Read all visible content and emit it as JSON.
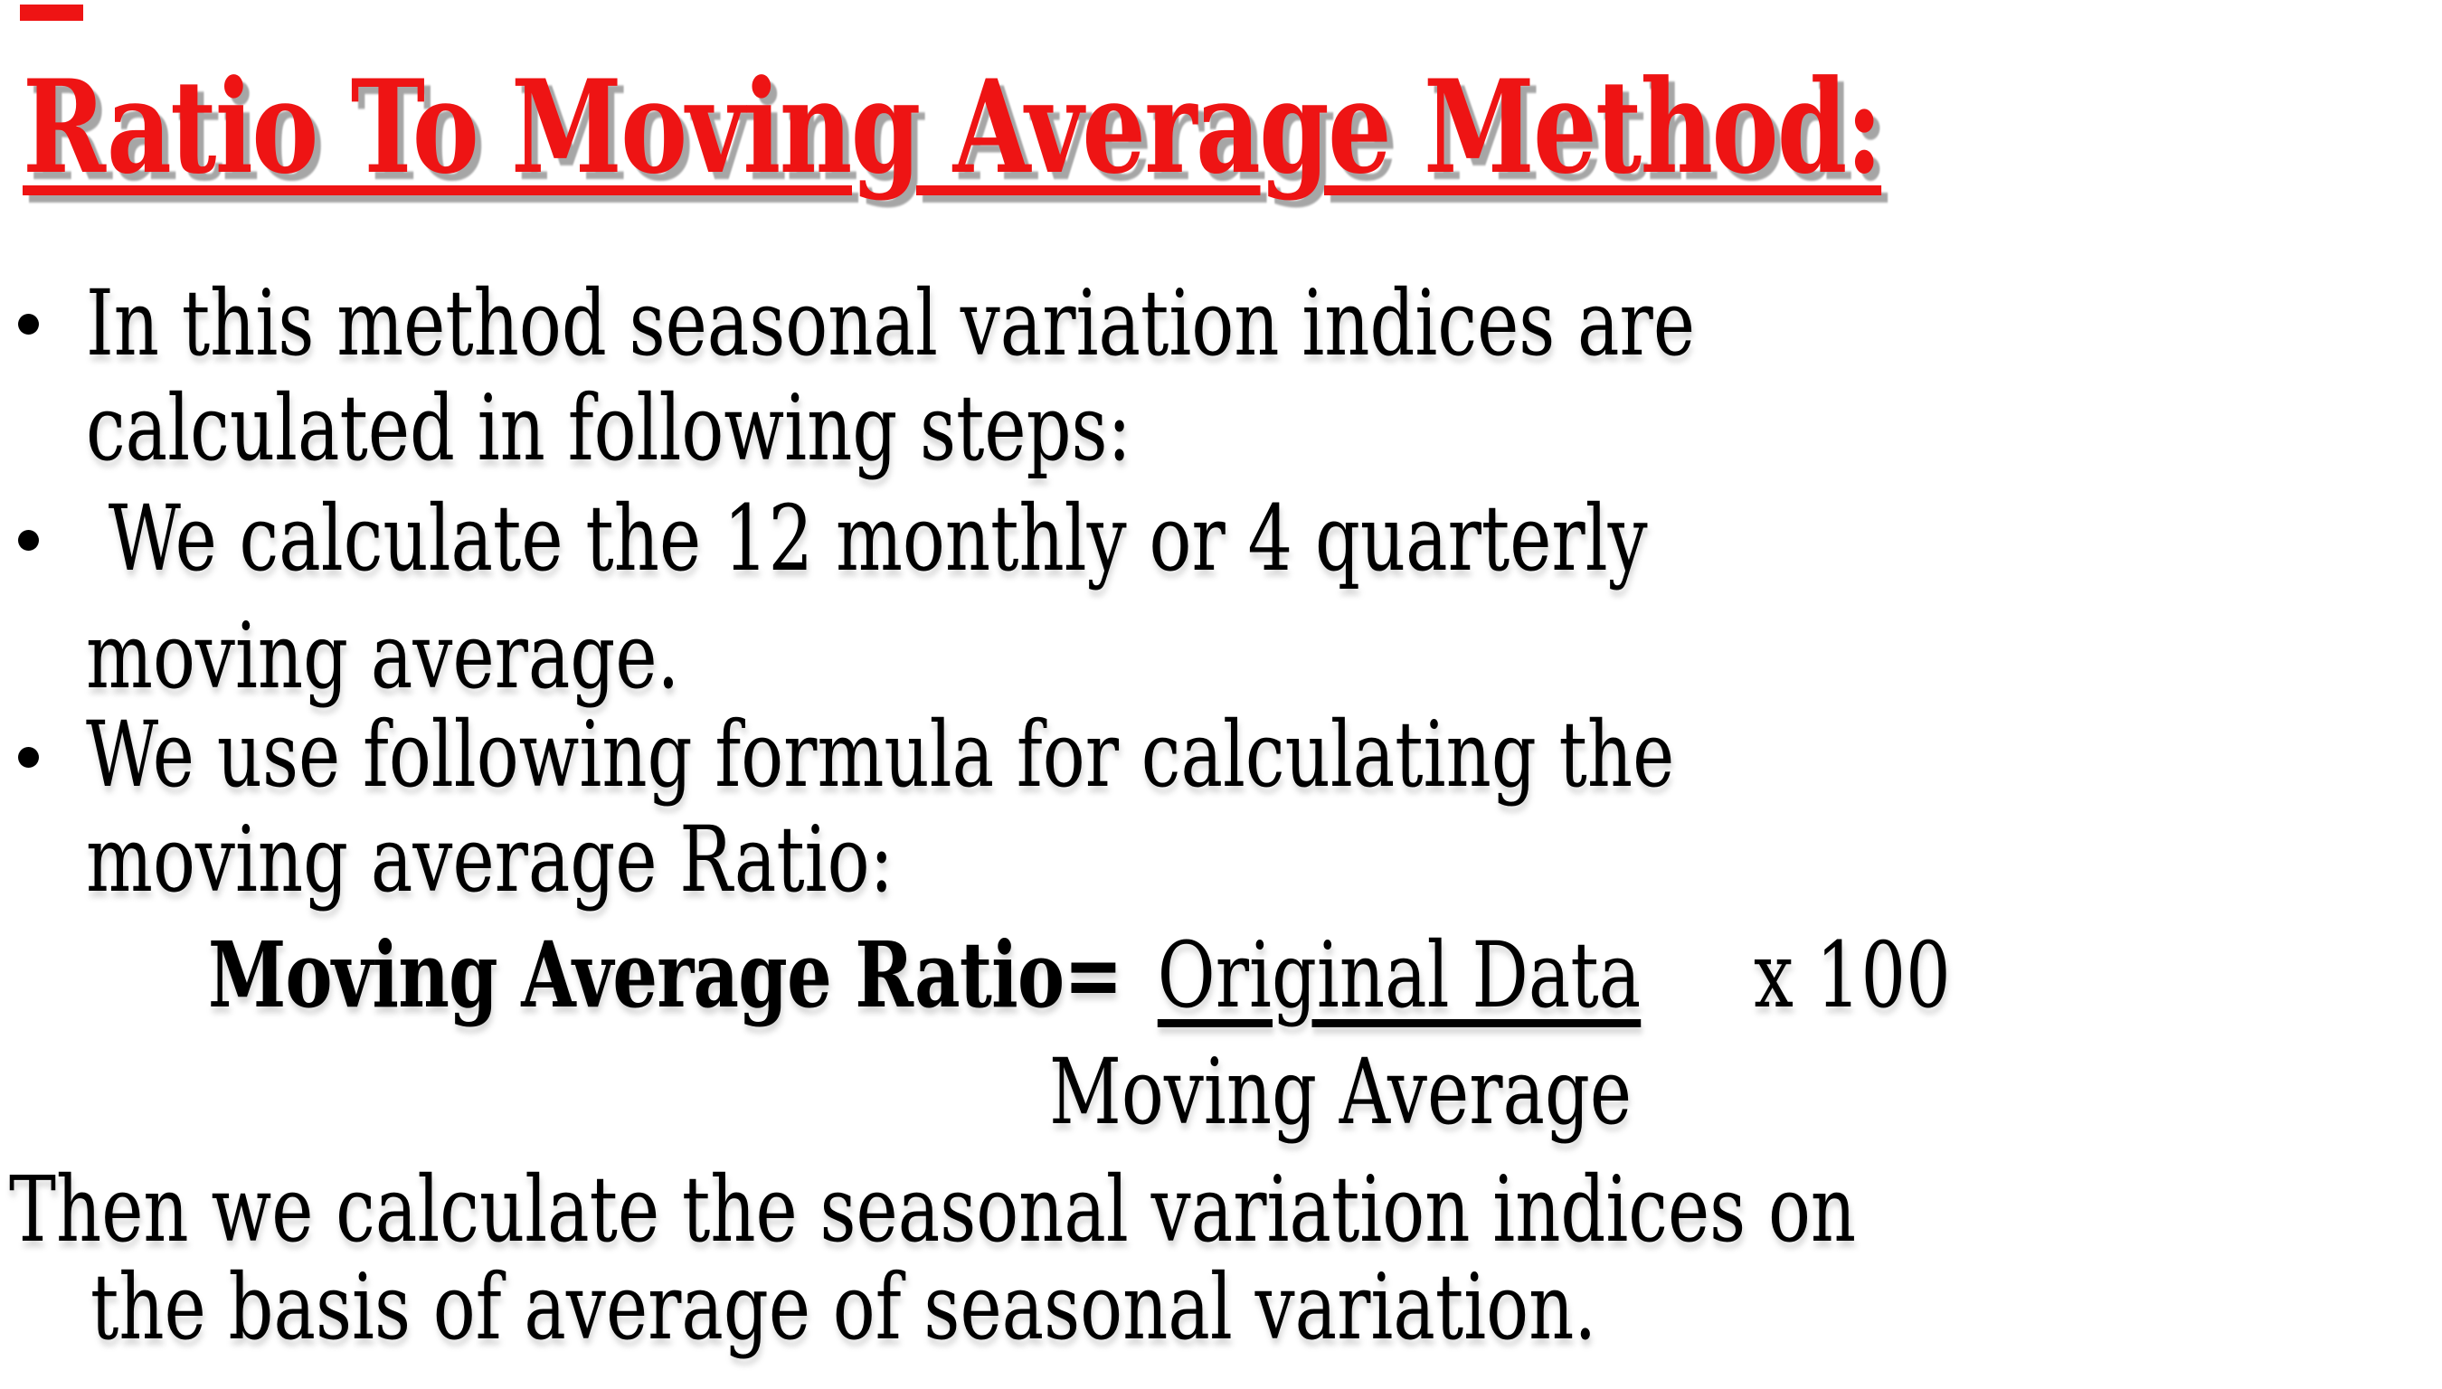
{
  "decor": {
    "top_left_bar_color": "#ee1414"
  },
  "title": {
    "text": "Ratio To Moving Average Method:",
    "color": "#ee1414"
  },
  "bullets": [
    {
      "lines": [
        "In this method seasonal variation indices are",
        "calculated in following steps:"
      ]
    },
    {
      "lines": [
        " We calculate the 12 monthly or 4 quarterly",
        "moving average."
      ]
    },
    {
      "lines": [
        "We use following formula for calculating the",
        "moving average Ratio:"
      ]
    }
  ],
  "formula": {
    "lhs_bold": "Moving Average Ratio=",
    "numerator": "Original Data",
    "multiplier": "x 100",
    "denominator": "Moving Average"
  },
  "closing": {
    "lines": [
      "Then we calculate the seasonal variation indices on",
      "the basis of average of seasonal variation."
    ]
  }
}
